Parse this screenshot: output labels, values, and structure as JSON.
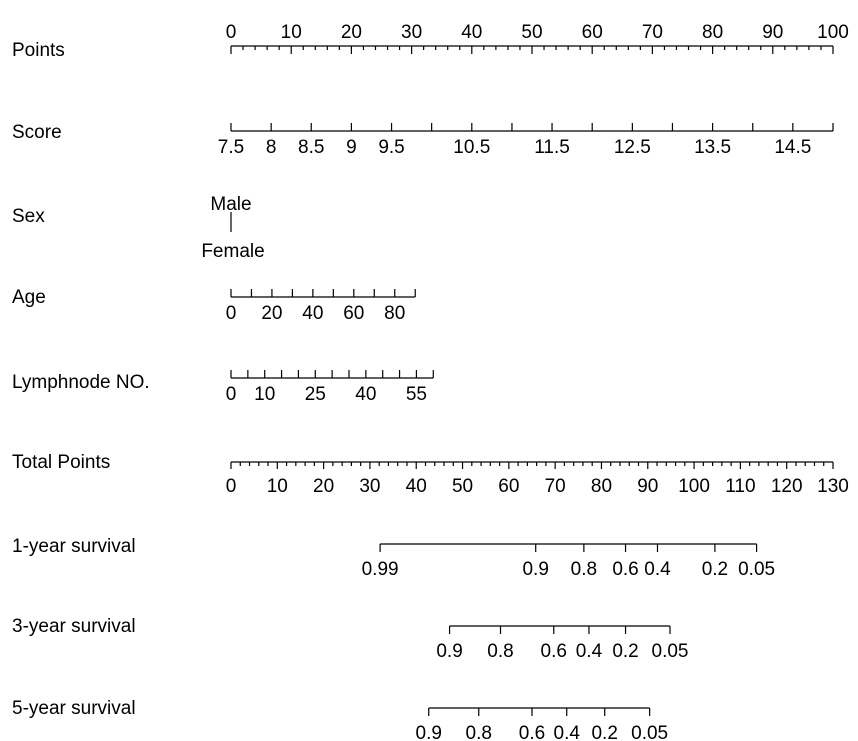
{
  "chart_data": {
    "type": "nomogram",
    "rows": [
      {
        "key": "points",
        "label": "Points",
        "scale_type": "linear",
        "range": [
          0,
          100
        ],
        "minor_step": 2,
        "major_step": 10,
        "labels_above": true,
        "labels": [
          "0",
          "10",
          "20",
          "30",
          "40",
          "50",
          "60",
          "70",
          "80",
          "90",
          "100"
        ]
      },
      {
        "key": "score",
        "label": "Score",
        "scale_type": "points_mapped",
        "tick_values": [
          7.5,
          8,
          8.5,
          9,
          9.5,
          10,
          10.5,
          11,
          11.5,
          12,
          12.5,
          13,
          13.5,
          14,
          14.5,
          15
        ],
        "tick_points": [
          0,
          6.67,
          13.33,
          20,
          26.67,
          33.33,
          40,
          46.67,
          53.33,
          60,
          66.67,
          73.33,
          80,
          86.67,
          93.33,
          100
        ],
        "labels": [
          "7.5",
          "8",
          "8.5",
          "9",
          "9.5",
          "",
          "10.5",
          "",
          "11.5",
          "",
          "12.5",
          "",
          "13.5",
          "",
          "14.5",
          ""
        ]
      },
      {
        "key": "sex",
        "label": "Sex",
        "scale_type": "categorical",
        "levels": [
          "Male",
          "Female"
        ],
        "points": [
          0,
          0
        ]
      },
      {
        "key": "age",
        "label": "Age",
        "scale_type": "points_mapped",
        "tick_values": [
          0,
          10,
          20,
          30,
          40,
          50,
          60,
          70,
          80,
          90
        ],
        "tick_points": [
          0,
          3.4,
          6.8,
          10.2,
          13.6,
          17,
          20.4,
          23.8,
          27.2,
          30.6
        ],
        "labels": [
          "0",
          "",
          "20",
          "",
          "40",
          "",
          "60",
          "",
          "80",
          ""
        ]
      },
      {
        "key": "lymphnode",
        "label": "Lymphnode NO.",
        "scale_type": "points_mapped",
        "tick_values": [
          0,
          5,
          10,
          15,
          20,
          25,
          30,
          35,
          40,
          45,
          50,
          55,
          60
        ],
        "tick_points": [
          0,
          2.8,
          5.6,
          8.4,
          11.2,
          14,
          16.8,
          19.6,
          22.4,
          25.2,
          28,
          30.8,
          33.6
        ],
        "labels": [
          "0",
          "",
          "10",
          "",
          "",
          "25",
          "",
          "",
          "40",
          "",
          "",
          "55",
          ""
        ]
      },
      {
        "key": "total_points",
        "label": "Total Points",
        "scale_type": "total",
        "range": [
          0,
          130
        ],
        "minor_step": 2,
        "major_step": 10,
        "labels": [
          "0",
          "10",
          "20",
          "30",
          "40",
          "50",
          "60",
          "70",
          "80",
          "90",
          "100",
          "110",
          "120",
          "130"
        ]
      },
      {
        "key": "survival_1y",
        "label": "1-year survival",
        "scale_type": "probability",
        "tick_values": [
          0.99,
          0.9,
          0.8,
          0.6,
          0.4,
          0.2,
          0.05
        ],
        "tick_total_points": [
          32.2,
          65.8,
          76.2,
          85.2,
          92.1,
          104.5,
          113.5
        ],
        "labels": [
          "0.99",
          "0.9",
          "0.8",
          "0.6",
          "0.4",
          "0.2",
          "0.05"
        ]
      },
      {
        "key": "survival_3y",
        "label": "3-year survival",
        "scale_type": "probability",
        "tick_values": [
          0.9,
          0.8,
          0.6,
          0.4,
          0.2,
          0.05
        ],
        "tick_total_points": [
          47.2,
          58.2,
          69.7,
          77.3,
          85.2,
          94.8
        ],
        "labels": [
          "0.9",
          "0.8",
          "0.6",
          "0.4",
          "0.2",
          "0.05"
        ]
      },
      {
        "key": "survival_5y",
        "label": "5-year survival",
        "scale_type": "probability",
        "tick_values": [
          0.9,
          0.8,
          0.6,
          0.4,
          0.2,
          0.05
        ],
        "tick_total_points": [
          42.7,
          53.5,
          65,
          72.5,
          80.7,
          90.4
        ],
        "labels": [
          "0.9",
          "0.8",
          "0.6",
          "0.4",
          "0.2",
          "0.05"
        ]
      }
    ]
  }
}
